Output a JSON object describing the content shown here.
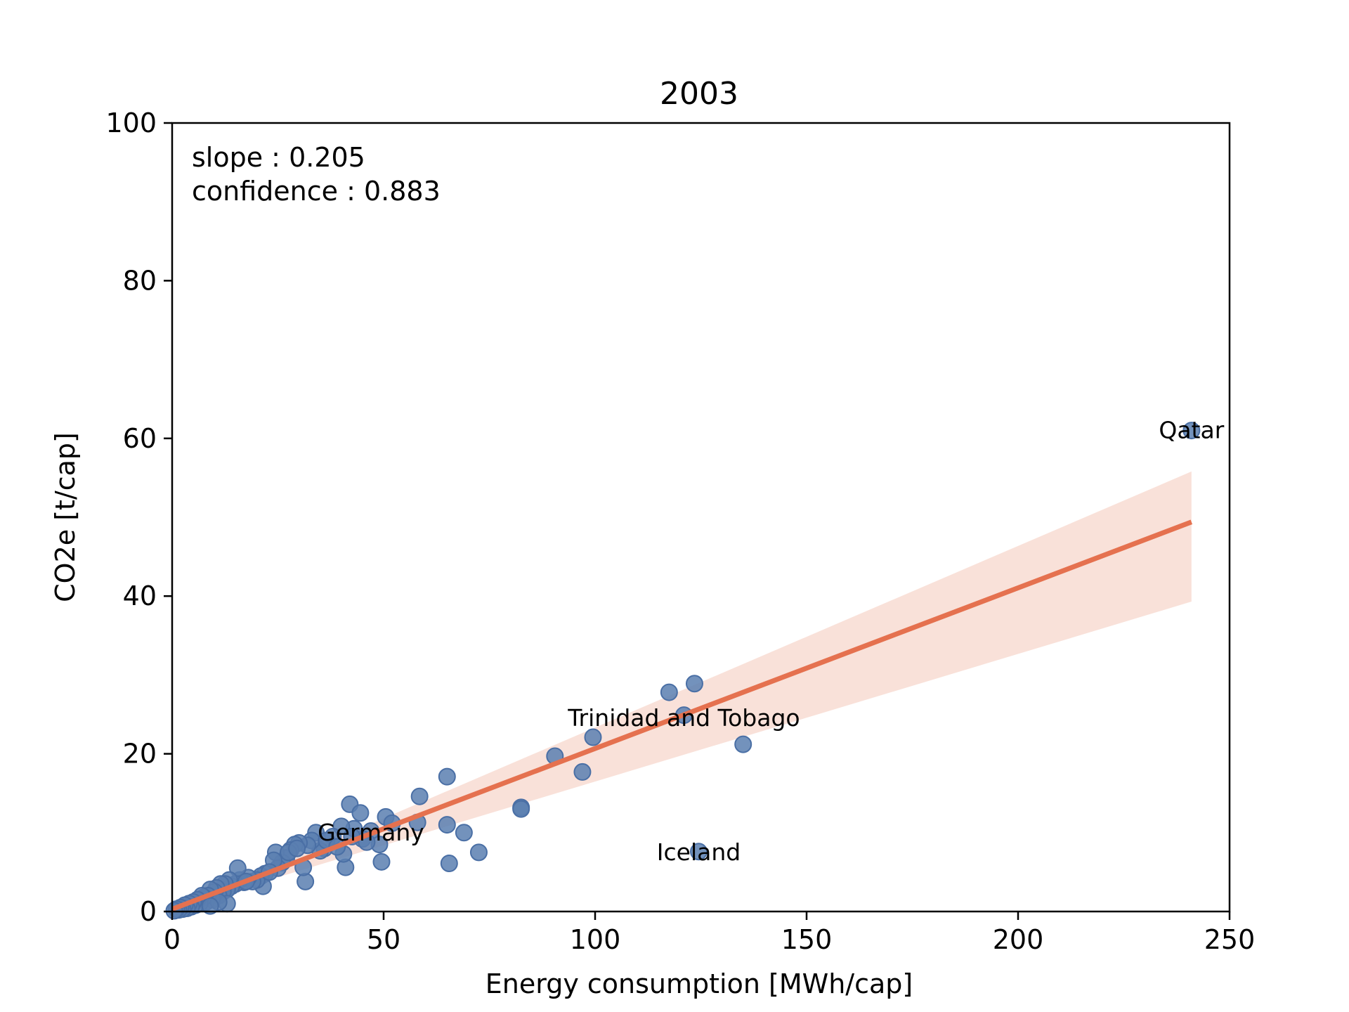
{
  "chart_data": {
    "type": "scatter",
    "title": "2003",
    "xlabel": "Energy consumption [MWh/cap]",
    "ylabel": "CO2e [t/cap]",
    "xlim": [
      0,
      250
    ],
    "ylim": [
      0,
      100
    ],
    "xticks": [
      0,
      50,
      100,
      150,
      200,
      250
    ],
    "yticks": [
      0,
      20,
      40,
      60,
      80,
      100
    ],
    "xtick_labels": [
      "0",
      "50",
      "100",
      "150",
      "200",
      "250"
    ],
    "ytick_labels": [
      "0",
      "20",
      "40",
      "60",
      "80",
      "100"
    ],
    "grid": false,
    "stats": {
      "slope_text": "slope : 0.205",
      "confidence_text": "confidence : 0.883"
    },
    "colors": {
      "points": "#5b7fb0",
      "point_edge": "#4a6fa5",
      "fit_line": "#e5714f",
      "ci_band": "#f8dcd2"
    },
    "regression": {
      "x_range": [
        0,
        241
      ],
      "y_start": 0.3,
      "y_end": 49.4,
      "ci_upper_end": 55.8,
      "ci_lower_end": 39.3
    },
    "annotations": [
      {
        "text": "Qatar",
        "x": 241,
        "y": 61
      },
      {
        "text": "Trinidad and Tobago",
        "x": 121,
        "y": 24.5
      },
      {
        "text": "Germany",
        "x": 47,
        "y": 10
      },
      {
        "text": "Iceland",
        "x": 124.5,
        "y": 7.5
      }
    ],
    "points": [
      {
        "x": 241,
        "y": 61
      },
      {
        "x": 123.5,
        "y": 28.9
      },
      {
        "x": 117.5,
        "y": 27.8
      },
      {
        "x": 121,
        "y": 24.9
      },
      {
        "x": 99.5,
        "y": 22.1
      },
      {
        "x": 135,
        "y": 21.2
      },
      {
        "x": 90.5,
        "y": 19.7
      },
      {
        "x": 97,
        "y": 17.7
      },
      {
        "x": 65,
        "y": 17.1
      },
      {
        "x": 58.5,
        "y": 14.6
      },
      {
        "x": 42,
        "y": 13.6
      },
      {
        "x": 44.5,
        "y": 12.5
      },
      {
        "x": 82.5,
        "y": 13.2
      },
      {
        "x": 82.5,
        "y": 13.0
      },
      {
        "x": 50.5,
        "y": 12.0
      },
      {
        "x": 52,
        "y": 11.2
      },
      {
        "x": 58,
        "y": 11.3
      },
      {
        "x": 65,
        "y": 11.0
      },
      {
        "x": 69,
        "y": 10.0
      },
      {
        "x": 124.5,
        "y": 7.6
      },
      {
        "x": 72.5,
        "y": 7.5
      },
      {
        "x": 65.5,
        "y": 6.1
      },
      {
        "x": 49.5,
        "y": 6.3
      },
      {
        "x": 41,
        "y": 5.6
      },
      {
        "x": 31.5,
        "y": 3.8
      },
      {
        "x": 47,
        "y": 10.2
      },
      {
        "x": 49,
        "y": 8.5
      },
      {
        "x": 45,
        "y": 9.2
      },
      {
        "x": 43,
        "y": 10.5
      },
      {
        "x": 40,
        "y": 10.8
      },
      {
        "x": 38,
        "y": 9.5
      },
      {
        "x": 36,
        "y": 8.0
      },
      {
        "x": 35,
        "y": 7.7
      },
      {
        "x": 34,
        "y": 10.0
      },
      {
        "x": 33,
        "y": 9.0
      },
      {
        "x": 32,
        "y": 8.4
      },
      {
        "x": 30,
        "y": 8.7
      },
      {
        "x": 29,
        "y": 8.5
      },
      {
        "x": 28,
        "y": 7.8
      },
      {
        "x": 27,
        "y": 6.8
      },
      {
        "x": 26,
        "y": 6.2
      },
      {
        "x": 25,
        "y": 5.5
      },
      {
        "x": 24.5,
        "y": 7.5
      },
      {
        "x": 24,
        "y": 6.5
      },
      {
        "x": 31,
        "y": 5.6
      },
      {
        "x": 40.5,
        "y": 7.3
      },
      {
        "x": 22,
        "y": 4.8
      },
      {
        "x": 21,
        "y": 4.5
      },
      {
        "x": 21.5,
        "y": 3.2
      },
      {
        "x": 20,
        "y": 4.0
      },
      {
        "x": 19,
        "y": 3.8
      },
      {
        "x": 18,
        "y": 4.3
      },
      {
        "x": 17,
        "y": 3.7
      },
      {
        "x": 16,
        "y": 4.0
      },
      {
        "x": 15.5,
        "y": 5.5
      },
      {
        "x": 15,
        "y": 3.5
      },
      {
        "x": 14,
        "y": 3.2
      },
      {
        "x": 13.5,
        "y": 4.0
      },
      {
        "x": 13,
        "y": 2.8
      },
      {
        "x": 12.5,
        "y": 3.5
      },
      {
        "x": 12,
        "y": 2.5
      },
      {
        "x": 11.5,
        "y": 3.5
      },
      {
        "x": 11,
        "y": 2.0
      },
      {
        "x": 10.5,
        "y": 3.0
      },
      {
        "x": 10,
        "y": 2.5
      },
      {
        "x": 9.5,
        "y": 1.5
      },
      {
        "x": 9,
        "y": 2.8
      },
      {
        "x": 8.5,
        "y": 2.0
      },
      {
        "x": 8,
        "y": 1.2
      },
      {
        "x": 7.5,
        "y": 1.8
      },
      {
        "x": 7,
        "y": 2.0
      },
      {
        "x": 6.5,
        "y": 1.0
      },
      {
        "x": 6,
        "y": 1.5
      },
      {
        "x": 5.5,
        "y": 0.8
      },
      {
        "x": 5,
        "y": 1.2
      },
      {
        "x": 4.5,
        "y": 0.6
      },
      {
        "x": 4,
        "y": 1.0
      },
      {
        "x": 3.5,
        "y": 0.4
      },
      {
        "x": 3,
        "y": 0.8
      },
      {
        "x": 2.5,
        "y": 0.3
      },
      {
        "x": 2,
        "y": 0.5
      },
      {
        "x": 1.5,
        "y": 0.2
      },
      {
        "x": 1,
        "y": 0.3
      },
      {
        "x": 0.5,
        "y": 0.1
      },
      {
        "x": 13,
        "y": 1.0
      },
      {
        "x": 11,
        "y": 1.2
      },
      {
        "x": 9,
        "y": 0.7
      },
      {
        "x": 17.5,
        "y": 3.8
      },
      {
        "x": 23,
        "y": 5.0
      },
      {
        "x": 27.5,
        "y": 7.5
      },
      {
        "x": 29.5,
        "y": 8.0
      },
      {
        "x": 36.5,
        "y": 9.0
      },
      {
        "x": 39,
        "y": 8.2
      },
      {
        "x": 42.5,
        "y": 9.5
      },
      {
        "x": 46,
        "y": 8.8
      }
    ]
  }
}
